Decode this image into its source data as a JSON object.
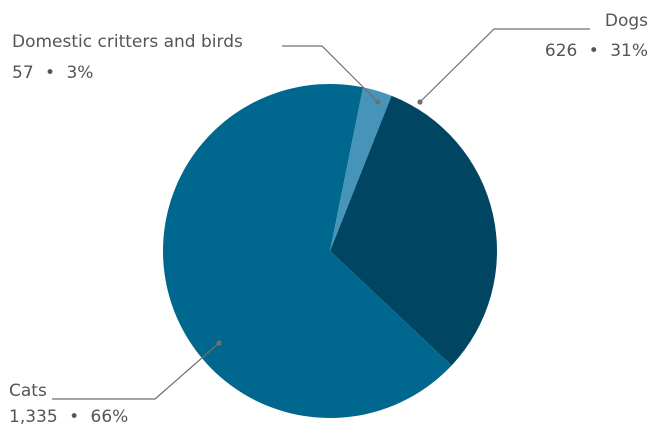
{
  "chart_data": {
    "type": "pie",
    "title": "",
    "slices": [
      {
        "name": "Dogs",
        "value": 626,
        "percent": 31,
        "value_label": "626",
        "percent_label": "31%",
        "color": "#004562"
      },
      {
        "name": "Cats",
        "value": 1335,
        "percent": 66,
        "value_label": "1,335",
        "percent_label": "66%",
        "color": "#00678e"
      },
      {
        "name": "Domestic critters and birds",
        "value": 57,
        "percent": 3,
        "value_label": "57",
        "percent_label": "3%",
        "color": "#4694b9"
      }
    ],
    "label_separator": "•",
    "legend": "none"
  }
}
